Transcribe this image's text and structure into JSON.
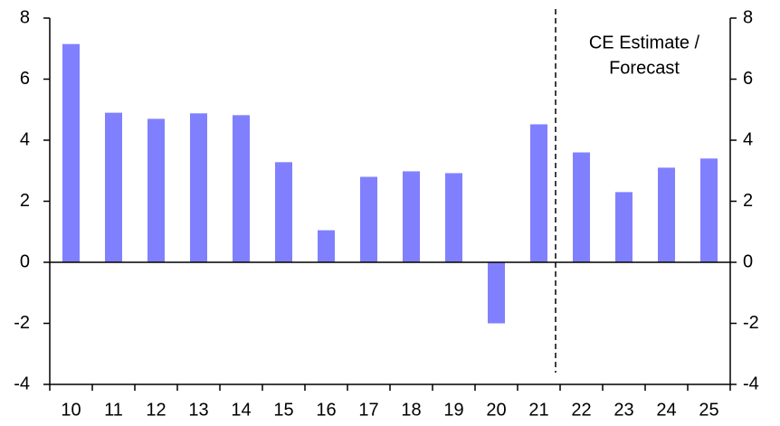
{
  "chart_data": {
    "type": "bar",
    "annotation": [
      "CE Estimate /",
      "Forecast"
    ],
    "categories": [
      "10",
      "11",
      "12",
      "13",
      "14",
      "15",
      "16",
      "17",
      "18",
      "19",
      "20",
      "21",
      "22",
      "23",
      "24",
      "25"
    ],
    "values": [
      7.15,
      4.9,
      4.7,
      4.88,
      4.82,
      3.28,
      1.05,
      2.8,
      2.98,
      2.92,
      -2.0,
      4.52,
      3.6,
      2.3,
      3.1,
      3.4
    ],
    "color": "#8080ff",
    "ylim": [
      -4,
      8
    ],
    "yticks": [
      -4,
      -2,
      0,
      2,
      4,
      6,
      8
    ],
    "y2lim": [
      -4,
      8
    ],
    "y2ticks": [
      -4,
      -2,
      0,
      2,
      4,
      6,
      8
    ],
    "grid": false
  }
}
